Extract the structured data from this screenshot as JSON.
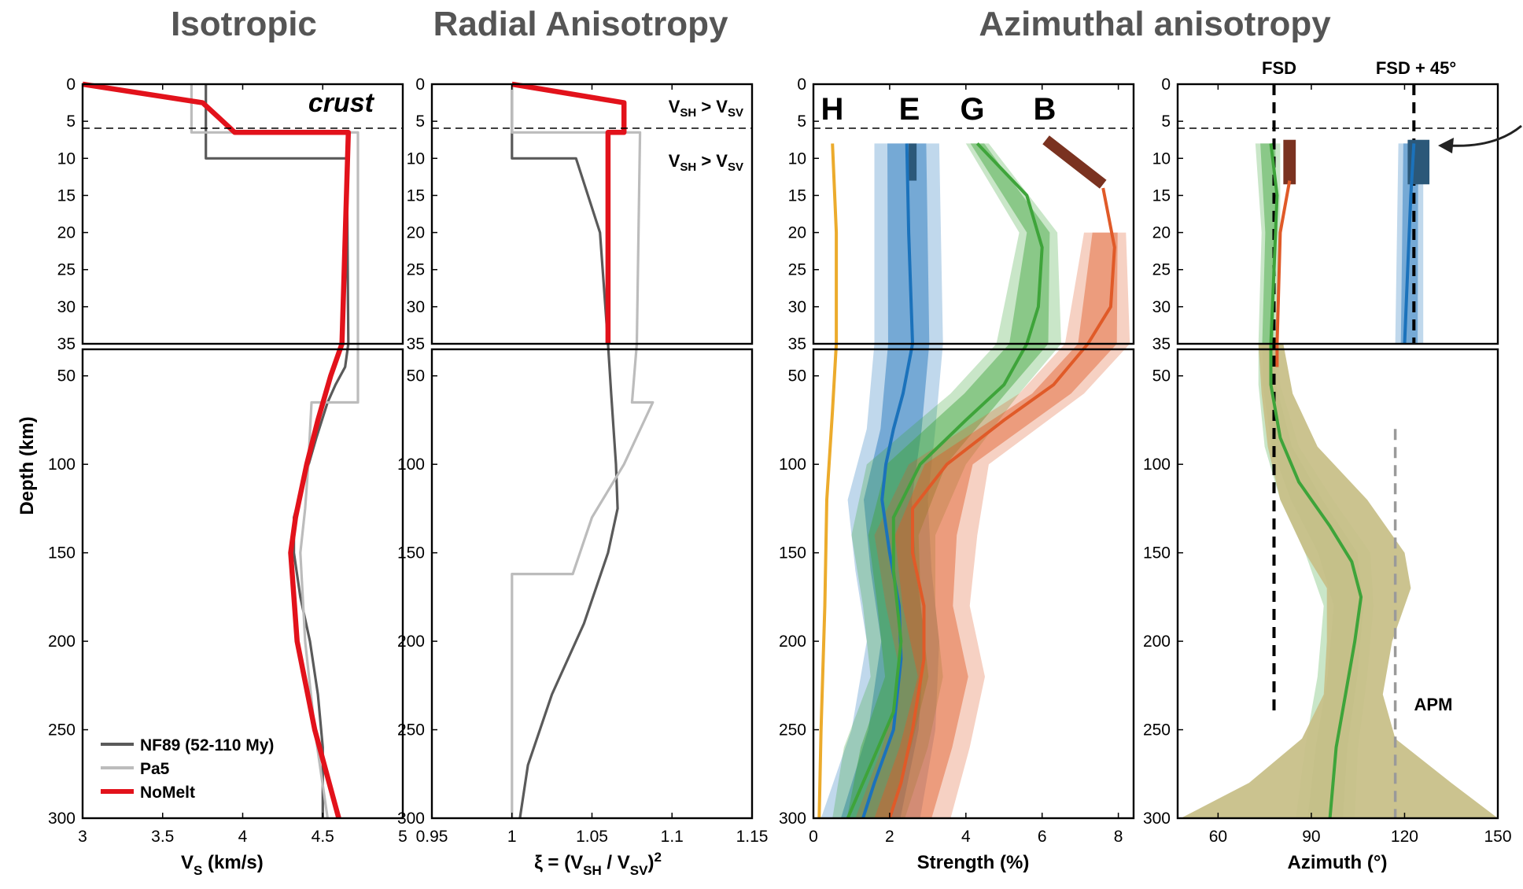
{
  "titles": {
    "isotropic": "Isotropic",
    "radial": "Radial Anisotropy",
    "azimuthal": "Azimuthal anisotropy"
  },
  "axis_labels": {
    "depth": "Depth (km)",
    "vs_main": "V",
    "vs_sub": "S",
    "vs_unit": " (km/s)",
    "xi_prefix": "ξ = (V",
    "xi_sub1": "SH",
    "xi_mid": " / V",
    "xi_sub2": "SV",
    "xi_suffix": ")",
    "xi_sup": "2",
    "strength": "Strength (%)",
    "azimuth": "Azimuth (°)"
  },
  "annotations": {
    "crust": "crust",
    "vsh_main_1": "V",
    "vsh_sub_1": "SH",
    "gt_1": " > V",
    "vsv_sub_1": "SV",
    "vsh_main_2": "V",
    "vsh_sub_2": "SH",
    "gt_2": " > V",
    "vsv_sub_2": "SV",
    "fsd": "FSD",
    "fsd45": "FSD + 45°",
    "apm": "APM",
    "letter_h": "H",
    "letter_e": "E",
    "letter_g": "G",
    "letter_b": "B"
  },
  "colors": {
    "nomelt": "#e2121b",
    "nf89": "#5a5a5a",
    "pa5": "#bcbcbc",
    "H": "#ecab2c",
    "E": "#1b72bb",
    "G": "#3ea43a",
    "B": "#e05a28",
    "E_bar": "#2b5879",
    "B_bar": "#7a3220",
    "apm_band": "#c8c089"
  },
  "chart_data": [
    {
      "type": "line",
      "panel": "isotropic",
      "title": "Isotropic",
      "xlabel": "VS (km/s)",
      "ylabel": "Depth (km)",
      "xlim": [
        3,
        5
      ],
      "ylim_shallow": [
        0,
        35
      ],
      "ylim_deep": [
        35,
        300
      ],
      "xticks": [
        "3",
        "3.5",
        "4",
        "4.5",
        "5"
      ],
      "legend": {
        "placement": "bottom-left",
        "entries": [
          "NF89 (52-110 My)",
          "Pa5",
          "NoMelt"
        ]
      },
      "series": [
        {
          "name": "NF89 (52-110 My)",
          "color_key": "nf89",
          "points": [
            [
              3.77,
              0
            ],
            [
              3.77,
              10
            ],
            [
              4.65,
              10
            ],
            [
              4.66,
              35
            ],
            [
              4.64,
              45
            ],
            [
              4.58,
              55
            ],
            [
              4.53,
              65
            ],
            [
              4.46,
              85
            ],
            [
              4.38,
              110
            ],
            [
              4.32,
              130
            ],
            [
              4.32,
              150
            ],
            [
              4.36,
              175
            ],
            [
              4.42,
              200
            ],
            [
              4.47,
              230
            ],
            [
              4.5,
              260
            ],
            [
              4.5,
              300
            ]
          ]
        },
        {
          "name": "Pa5",
          "color_key": "pa5",
          "points": [
            [
              3.68,
              0
            ],
            [
              3.68,
              6.5
            ],
            [
              4.72,
              6.5
            ],
            [
              4.72,
              35
            ],
            [
              4.72,
              65
            ],
            [
              4.43,
              65
            ],
            [
              4.41,
              100
            ],
            [
              4.39,
              125
            ],
            [
              4.36,
              150
            ],
            [
              4.39,
              200
            ],
            [
              4.45,
              250
            ],
            [
              4.53,
              300
            ]
          ]
        },
        {
          "name": "NoMelt",
          "color_key": "nomelt",
          "points": [
            [
              3,
              0
            ],
            [
              3.75,
              2.5
            ],
            [
              3.85,
              4.5
            ],
            [
              3.95,
              6.5
            ],
            [
              4.66,
              6.5
            ],
            [
              4.62,
              35
            ],
            [
              4.55,
              50
            ],
            [
              4.47,
              75
            ],
            [
              4.4,
              100
            ],
            [
              4.33,
              130
            ],
            [
              4.3,
              150
            ],
            [
              4.34,
              200
            ],
            [
              4.45,
              250
            ],
            [
              4.6,
              300
            ]
          ]
        }
      ]
    },
    {
      "type": "line",
      "panel": "radial",
      "title": "Radial Anisotropy",
      "xlabel": "ξ = (VSH / VSV)2",
      "xlim": [
        0.95,
        1.15
      ],
      "xticks": [
        "0.95",
        "1",
        "1.05",
        "1.1",
        "1.15"
      ],
      "series": [
        {
          "name": "NF89 (52-110 My)",
          "color_key": "nf89",
          "points": [
            [
              1,
              0
            ],
            [
              1,
              10
            ],
            [
              1.04,
              10
            ],
            [
              1.055,
              20
            ],
            [
              1.06,
              35
            ],
            [
              1.062,
              60
            ],
            [
              1.065,
              100
            ],
            [
              1.066,
              125
            ],
            [
              1.06,
              150
            ],
            [
              1.045,
              190
            ],
            [
              1.025,
              230
            ],
            [
              1.01,
              270
            ],
            [
              1.005,
              300
            ]
          ]
        },
        {
          "name": "Pa5",
          "color_key": "pa5",
          "points": [
            [
              1,
              0
            ],
            [
              1,
              6.5
            ],
            [
              1.08,
              6.5
            ],
            [
              1.078,
              35
            ],
            [
              1.075,
              65
            ],
            [
              1.088,
              65
            ],
            [
              1.07,
              100
            ],
            [
              1.05,
              130
            ],
            [
              1.038,
              162
            ],
            [
              1,
              162
            ],
            [
              1,
              300
            ]
          ]
        },
        {
          "name": "NoMelt",
          "color_key": "nomelt",
          "points": [
            [
              1,
              0
            ],
            [
              1.07,
              2.5
            ],
            [
              1.07,
              6.5
            ],
            [
              1.06,
              6.5
            ],
            [
              1.06,
              35
            ]
          ]
        }
      ]
    },
    {
      "type": "line",
      "panel": "strength",
      "title": "Azimuthal anisotropy",
      "xlabel": "Strength (%)",
      "xlim": [
        0,
        8.4
      ],
      "xticks": [
        "0",
        "2",
        "4",
        "6",
        "8"
      ],
      "series": [
        {
          "name": "H",
          "color_key": "H",
          "points": [
            [
              0.5,
              8
            ],
            [
              0.6,
              20
            ],
            [
              0.6,
              35
            ],
            [
              0.5,
              70
            ],
            [
              0.35,
              120
            ],
            [
              0.3,
              180
            ],
            [
              0.2,
              250
            ],
            [
              0.15,
              300
            ]
          ],
          "band": []
        },
        {
          "name": "E",
          "color_key": "E",
          "points": [
            [
              2.45,
              8
            ],
            [
              2.5,
              20
            ],
            [
              2.6,
              35
            ],
            [
              2.35,
              60
            ],
            [
              2.1,
              80
            ],
            [
              1.9,
              100
            ],
            [
              1.8,
              120
            ],
            [
              2.0,
              150
            ],
            [
              2.25,
              180
            ],
            [
              2.3,
              210
            ],
            [
              2.1,
              250
            ],
            [
              1.6,
              280
            ],
            [
              1.3,
              300
            ]
          ],
          "band": [
            [
              1.6,
              3.3,
              8
            ],
            [
              1.6,
              3.4,
              35
            ],
            [
              1.4,
              3.2,
              80
            ],
            [
              0.9,
              3.0,
              120
            ],
            [
              1.1,
              3.1,
              160
            ],
            [
              1.4,
              3.3,
              200
            ],
            [
              1.0,
              3.2,
              250
            ],
            [
              0.2,
              2.8,
              300
            ]
          ]
        },
        {
          "name": "G",
          "color_key": "G",
          "points": [
            [
              4.3,
              8
            ],
            [
              5.6,
              15
            ],
            [
              6.0,
              22
            ],
            [
              5.9,
              30
            ],
            [
              5.6,
              35
            ],
            [
              5.0,
              55
            ],
            [
              4.0,
              75
            ],
            [
              2.8,
              100
            ],
            [
              2.1,
              130
            ],
            [
              2.1,
              160
            ],
            [
              2.3,
              200
            ],
            [
              2.1,
              240
            ],
            [
              1.3,
              280
            ],
            [
              0.9,
              300
            ]
          ],
          "band": [
            [
              4.0,
              4.6,
              8
            ],
            [
              5.4,
              6.4,
              20
            ],
            [
              4.8,
              6.5,
              35
            ],
            [
              3.6,
              5.4,
              60
            ],
            [
              1.4,
              4.0,
              100
            ],
            [
              1.0,
              3.2,
              140
            ],
            [
              1.3,
              3.2,
              180
            ],
            [
              1.5,
              3.4,
              220
            ],
            [
              0.8,
              3.0,
              260
            ],
            [
              0.5,
              2.4,
              300
            ]
          ]
        },
        {
          "name": "B",
          "color_key": "B",
          "points": [
            [
              7.6,
              14
            ],
            [
              7.9,
              22
            ],
            [
              7.8,
              30
            ],
            [
              7.2,
              35
            ],
            [
              6.3,
              55
            ],
            [
              5.0,
              75
            ],
            [
              3.5,
              100
            ],
            [
              2.6,
              125
            ],
            [
              2.6,
              150
            ],
            [
              2.9,
              180
            ],
            [
              2.9,
              210
            ],
            [
              2.6,
              250
            ],
            [
              2.3,
              280
            ],
            [
              2.0,
              300
            ]
          ],
          "band": [
            [
              7.1,
              8.2,
              20
            ],
            [
              6.6,
              8.3,
              35
            ],
            [
              5.4,
              7.1,
              60
            ],
            [
              2.5,
              4.6,
              100
            ],
            [
              1.6,
              4.3,
              140
            ],
            [
              1.9,
              4.1,
              180
            ],
            [
              2.3,
              4.5,
              220
            ],
            [
              1.8,
              4.1,
              260
            ],
            [
              1.1,
              3.6,
              300
            ]
          ]
        }
      ],
      "bars": [
        {
          "name": "E",
          "x0": 2.5,
          "x1": 2.6,
          "z0": 8,
          "z1": 13,
          "color_key": "E_bar"
        },
        {
          "name": "B",
          "x0": 6.1,
          "x1": 7.6,
          "z0": 7.5,
          "z1": 13.5,
          "color_key": "B_bar"
        }
      ]
    },
    {
      "type": "line",
      "panel": "azimuth",
      "xlabel": "Azimuth (°)",
      "xlim": [
        47,
        150
      ],
      "xticks": [
        "60",
        "90",
        "120",
        "150"
      ],
      "reference_lines": [
        {
          "name": "FSD",
          "x": 78,
          "z0": 0,
          "z1": 240,
          "style": "dashed"
        },
        {
          "name": "FSD + 45°",
          "x": 123,
          "z0": 0,
          "z1": 35,
          "style": "dashed"
        },
        {
          "name": "APM",
          "x": 117,
          "z0": 80,
          "z1": 300,
          "style": "dashed-gray"
        }
      ],
      "series": [
        {
          "name": "G",
          "color_key": "G",
          "points": [
            [
              77,
              8
            ],
            [
              79,
              15
            ],
            [
              78,
              25
            ],
            [
              77,
              35
            ],
            [
              77,
              55
            ],
            [
              80,
              85
            ],
            [
              86,
              110
            ],
            [
              96,
              135
            ],
            [
              103,
              155
            ],
            [
              106,
              175
            ],
            [
              104,
              200
            ],
            [
              101,
              230
            ],
            [
              98,
              260
            ],
            [
              96,
              300
            ]
          ],
          "band": [
            [
              72,
              80,
              8
            ],
            [
              74,
              80,
              20
            ],
            [
              73,
              79,
              35
            ],
            [
              73,
              80,
              55
            ],
            [
              75,
              86,
              90
            ],
            [
              80,
              97,
              120
            ],
            [
              88,
              109,
              150
            ],
            [
              94,
              110,
              180
            ],
            [
              92,
              108,
              220
            ],
            [
              88,
              105,
              260
            ],
            [
              85,
              104,
              300
            ]
          ]
        },
        {
          "name": "B",
          "color_key": "B",
          "points": [
            [
              83,
              13
            ],
            [
              80,
              20
            ],
            [
              79,
              35
            ],
            [
              79,
              45
            ]
          ],
          "band": []
        },
        {
          "name": "E",
          "color_key": "E",
          "points": [
            [
              123,
              8
            ],
            [
              122,
              15
            ],
            [
              121,
              25
            ],
            [
              120,
              35
            ]
          ],
          "band": [
            [
              118,
              126,
              8
            ],
            [
              117,
              126,
              35
            ]
          ]
        },
        {
          "name": "APM",
          "color_key": "apm_band",
          "points": [],
          "band": [
            [
              73,
              81,
              35
            ],
            [
              74,
              84,
              60
            ],
            [
              76,
              92,
              90
            ],
            [
              80,
              108,
              120
            ],
            [
              88,
              120,
              150
            ],
            [
              95,
              122,
              170
            ],
            [
              95,
              116,
              200
            ],
            [
              94,
              113,
              230
            ],
            [
              87,
              117,
              255
            ],
            [
              70,
              135,
              280
            ],
            [
              48,
              150,
              300
            ]
          ]
        }
      ],
      "bars": [
        {
          "name": "B",
          "x0": 81,
          "x1": 85,
          "z0": 7.5,
          "z1": 13.5,
          "color_key": "B_bar"
        },
        {
          "name": "E",
          "x0": 121,
          "x1": 128,
          "z0": 7.5,
          "z1": 13.5,
          "color_key": "E_bar"
        }
      ]
    }
  ]
}
